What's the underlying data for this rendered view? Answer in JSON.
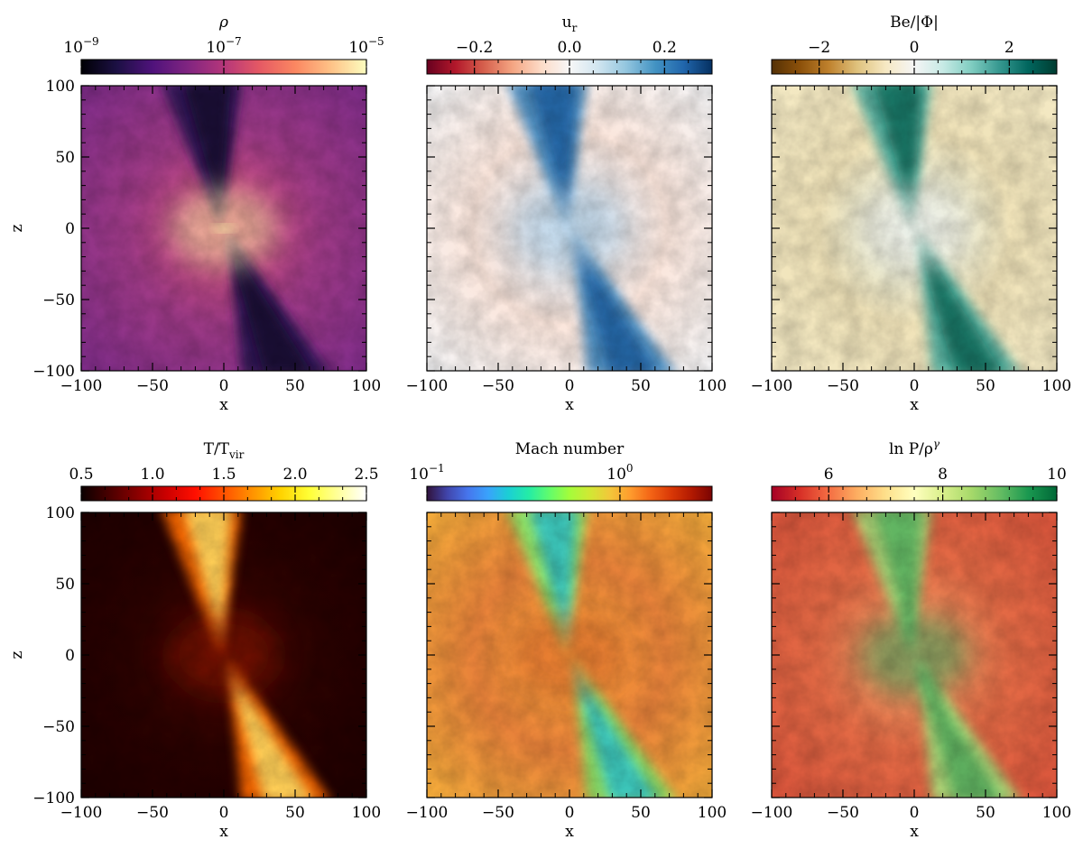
{
  "chart_data": [
    {
      "type": "heatmap",
      "quantity": "rho",
      "title": "ρ",
      "colorbar": {
        "colormap": "magma",
        "scale": "log",
        "range": [
          1e-09,
          1e-05
        ],
        "ticks": [
          {
            "base": "10",
            "exp": "−9"
          },
          {
            "base": "10",
            "exp": "−7"
          },
          {
            "base": "10",
            "exp": "−5"
          }
        ]
      },
      "xlabel": "x",
      "ylabel": "z",
      "xlim": [
        -100,
        100
      ],
      "ylim": [
        -100,
        100
      ],
      "xticks": [
        "−100",
        "−50",
        "0",
        "50",
        "100"
      ],
      "yticks": [
        "100",
        "50",
        "0",
        "−50",
        "−100"
      ]
    },
    {
      "type": "heatmap",
      "quantity": "u_r",
      "title": "u",
      "title_sub": "r",
      "colorbar": {
        "colormap": "RdBu",
        "scale": "linear",
        "range": [
          -0.3,
          0.3
        ],
        "ticks": [
          "−0.2",
          "0.0",
          "0.2"
        ]
      },
      "xlabel": "x",
      "ylabel": "",
      "xlim": [
        -100,
        100
      ],
      "ylim": [
        -100,
        100
      ],
      "xticks": [
        "−100",
        "−50",
        "0",
        "50",
        "100"
      ]
    },
    {
      "type": "heatmap",
      "quantity": "Be/|Phi|",
      "title": "Be/|Φ|",
      "colorbar": {
        "colormap": "BrBG",
        "scale": "linear",
        "range": [
          -3,
          3
        ],
        "ticks": [
          "−2",
          "0",
          "2"
        ]
      },
      "xlabel": "x",
      "ylabel": "",
      "xlim": [
        -100,
        100
      ],
      "ylim": [
        -100,
        100
      ],
      "xticks": [
        "−100",
        "−50",
        "0",
        "50",
        "100"
      ]
    },
    {
      "type": "heatmap",
      "quantity": "T/Tvir",
      "title": "T/T",
      "title_sub": "vir",
      "colorbar": {
        "colormap": "hot",
        "scale": "linear",
        "range": [
          0.5,
          2.5
        ],
        "ticks": [
          "0.5",
          "1.0",
          "1.5",
          "2.0",
          "2.5"
        ]
      },
      "xlabel": "x",
      "ylabel": "z",
      "xlim": [
        -100,
        100
      ],
      "ylim": [
        -100,
        100
      ],
      "xticks": [
        "−100",
        "−50",
        "0",
        "50",
        "100"
      ],
      "yticks": [
        "100",
        "50",
        "0",
        "−50",
        "−100"
      ]
    },
    {
      "type": "heatmap",
      "quantity": "Mach",
      "title": "Mach number",
      "colorbar": {
        "colormap": "turbo",
        "scale": "log",
        "range": [
          0.1,
          3
        ],
        "ticks": [
          {
            "base": "10",
            "exp": "−1"
          },
          {
            "base": "10",
            "exp": "0"
          }
        ]
      },
      "xlabel": "x",
      "ylabel": "",
      "xlim": [
        -100,
        100
      ],
      "ylim": [
        -100,
        100
      ],
      "xticks": [
        "−100",
        "−50",
        "0",
        "50",
        "100"
      ]
    },
    {
      "type": "heatmap",
      "quantity": "lnP/rho^gamma",
      "title": "ln P/ρ",
      "title_sup": "γ",
      "colorbar": {
        "colormap": "RdYlGn",
        "scale": "linear",
        "range": [
          5,
          10
        ],
        "ticks": [
          "6",
          "8",
          "10"
        ]
      },
      "xlabel": "x",
      "ylabel": "",
      "xlim": [
        -100,
        100
      ],
      "ylim": [
        -100,
        100
      ],
      "xticks": [
        "−100",
        "−50",
        "0",
        "50",
        "100"
      ]
    }
  ],
  "palettes": {
    "magma": [
      "#000004",
      "#1c1044",
      "#4f127b",
      "#812581",
      "#b5367a",
      "#e55964",
      "#fb8761",
      "#fec287",
      "#fcfdbf"
    ],
    "RdBu": [
      "#67001f",
      "#b2182b",
      "#d6604d",
      "#f4a582",
      "#fddbc7",
      "#f7f7f7",
      "#d1e5f0",
      "#92c5de",
      "#4393c3",
      "#2166ac",
      "#053061"
    ],
    "BrBG": [
      "#543005",
      "#8c510a",
      "#bf812d",
      "#dfc27d",
      "#f6e8c3",
      "#f5f5f5",
      "#c7eae5",
      "#80cdc1",
      "#35978f",
      "#01665e",
      "#003c30"
    ],
    "hot": [
      "#0b0000",
      "#4b0000",
      "#8c0000",
      "#cc0000",
      "#ff0f00",
      "#ff5100",
      "#ff9200",
      "#ffd300",
      "#ffff36",
      "#ffff9b",
      "#ffffff"
    ],
    "turbo": [
      "#30123b",
      "#4145ab",
      "#4675ed",
      "#39a2fc",
      "#1bcfd4",
      "#24eca6",
      "#61fc6c",
      "#a4fc3b",
      "#d1e834",
      "#f3c63a",
      "#fe9b2d",
      "#f36315",
      "#d93806",
      "#b11901",
      "#7a0403"
    ],
    "RdYlGn": [
      "#a50026",
      "#d73027",
      "#f46d43",
      "#fdae61",
      "#fee08b",
      "#ffffbf",
      "#d9ef8b",
      "#a6d96a",
      "#66bd63",
      "#1a9850",
      "#006837"
    ]
  },
  "field_colors": {
    "rho": {
      "bg": "#7a2a8a",
      "bg2": "#9e3a86",
      "mid": "#d8557a",
      "core": "#fde8a8",
      "out1": "#2e1354",
      "out2": "#150a2e"
    },
    "u_r": {
      "bg": "#f3f6f9",
      "bg2": "#fbe6dc",
      "mid": "#c8ddee",
      "core": "#b8d4ea",
      "out1": "#4b8ec2",
      "out2": "#1f5fa0"
    },
    "Be/|Phi|": {
      "bg": "#f5ebc6",
      "bg2": "#efe2b8",
      "mid": "#e2eee6",
      "core": "#f2f2ec",
      "out1": "#54b0a0",
      "out2": "#0b6a5a"
    },
    "T/Tvir": {
      "bg": "#1c0000",
      "bg2": "#2a0200",
      "mid": "#4a0800",
      "core": "#8c1400",
      "out1": "#ff6a00",
      "out2": "#ffe066"
    },
    "Mach": {
      "bg": "#f6b23b",
      "bg2": "#e8823a",
      "mid": "#fca33a",
      "core": "#d9652c",
      "out1": "#8ee86a",
      "out2": "#2fc0c8"
    },
    "lnP/rho^gamma": {
      "bg": "#d8513a",
      "bg2": "#e36a45",
      "mid": "#f0a36a",
      "core": "#3b9e5a",
      "out1": "#a9d878",
      "out2": "#55b05e"
    }
  }
}
